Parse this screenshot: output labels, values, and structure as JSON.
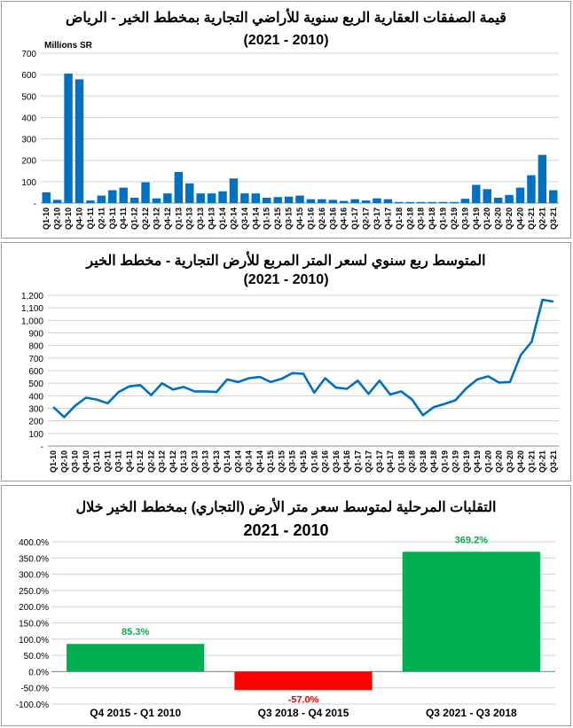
{
  "chart_data": [
    {
      "type": "bar",
      "title": "قيمة الصفقات العقارية الربع سنوية للأراضي التجارية بمخطط الخير - الرياض",
      "subtitle": "(2021 - 2010)",
      "unit_label": "Millions SR",
      "ylim": [
        0,
        700
      ],
      "yticks": [
        "-",
        "100",
        "200",
        "300",
        "400",
        "500",
        "600",
        "700"
      ],
      "grid": true,
      "color": "#0070C0",
      "categories": [
        "Q1-10",
        "Q2-10",
        "Q3-10",
        "Q4-10",
        "Q1-11",
        "Q2-11",
        "Q3-11",
        "Q4-11",
        "Q1-12",
        "Q2-12",
        "Q3-12",
        "Q4-12",
        "Q1-13",
        "Q2-13",
        "Q3-13",
        "Q4-13",
        "Q1-14",
        "Q2-14",
        "Q3-14",
        "Q4-14",
        "Q1-15",
        "Q2-15",
        "Q3-15",
        "Q4-15",
        "Q1-16",
        "Q2-16",
        "Q3-16",
        "Q4-16",
        "Q1-17",
        "Q2-17",
        "Q3-17",
        "Q4-17",
        "Q1-18",
        "Q2-18",
        "Q3-18",
        "Q4-18",
        "Q1-19",
        "Q2-19",
        "Q3-19",
        "Q4-19",
        "Q1-20",
        "Q2-20",
        "Q3-20",
        "Q4-20",
        "Q1-21",
        "Q2-21",
        "Q3-21"
      ],
      "values": [
        50,
        15,
        605,
        578,
        12,
        35,
        60,
        72,
        25,
        97,
        22,
        45,
        145,
        92,
        45,
        45,
        55,
        115,
        45,
        45,
        25,
        28,
        30,
        35,
        18,
        18,
        15,
        10,
        18,
        12,
        22,
        18,
        5,
        5,
        5,
        5,
        5,
        5,
        20,
        85,
        65,
        25,
        38,
        72,
        130,
        225,
        60
      ]
    },
    {
      "type": "line",
      "title": "المتوسط ربع سنوي لسعر المتر المربع للأرض التجارية - مخطط الخير",
      "subtitle": "(2021 - 2010)",
      "ylim": [
        0,
        1200
      ],
      "yticks": [
        "-",
        "100",
        "200",
        "300",
        "400",
        "500",
        "600",
        "700",
        "800",
        "900",
        "1,000",
        "1,100",
        "1,200"
      ],
      "grid": true,
      "color": "#0070C0",
      "categories": [
        "Q1-10",
        "Q2-10",
        "Q3-10",
        "Q4-10",
        "Q1-11",
        "Q2-11",
        "Q3-11",
        "Q4-11",
        "Q1-12",
        "Q2-12",
        "Q3-12",
        "Q4-12",
        "Q1-13",
        "Q2-13",
        "Q3-13",
        "Q4-13",
        "Q1-14",
        "Q2-14",
        "Q3-14",
        "Q4-14",
        "Q1-15",
        "Q2-15",
        "Q3-15",
        "Q4-15",
        "Q1-16",
        "Q2-16",
        "Q3-16",
        "Q4-16",
        "Q1-17",
        "Q2-17",
        "Q3-17",
        "Q4-17",
        "Q1-18",
        "Q2-18",
        "Q3-18",
        "Q4-18",
        "Q1-19",
        "Q2-19",
        "Q3-19",
        "Q4-19",
        "Q1-20",
        "Q2-20",
        "Q3-20",
        "Q4-20",
        "Q1-21",
        "Q2-21",
        "Q3-21"
      ],
      "values": [
        310,
        230,
        320,
        385,
        370,
        340,
        430,
        475,
        485,
        405,
        500,
        450,
        470,
        435,
        435,
        430,
        530,
        510,
        540,
        550,
        510,
        535,
        580,
        575,
        425,
        540,
        465,
        455,
        520,
        415,
        520,
        410,
        435,
        370,
        245,
        310,
        335,
        365,
        460,
        530,
        555,
        505,
        510,
        725,
        830,
        1165,
        1150
      ]
    },
    {
      "type": "bar",
      "title": "التقلبات المرحلية لمتوسط سعر متر الأرض (التجاري) بمخطط الخير خلال",
      "subtitle": "2021 - 2010",
      "ylim": [
        -100,
        400
      ],
      "yticks": [
        "-100.0%",
        "-50.0%",
        "0.0%",
        "50.0%",
        "100.0%",
        "150.0%",
        "200.0%",
        "250.0%",
        "300.0%",
        "350.0%",
        "400.0%"
      ],
      "grid": true,
      "categories": [
        "Q4 2015 - Q1 2010",
        "Q3 2018 - Q4 2015",
        "Q3 2021 - Q3 2018"
      ],
      "values": [
        85.3,
        -57.0,
        369.2
      ],
      "labels": [
        "85.3%",
        "-57.0%",
        "369.2%"
      ],
      "colors": [
        "#00B050",
        "#FF0000",
        "#00B050"
      ]
    }
  ]
}
